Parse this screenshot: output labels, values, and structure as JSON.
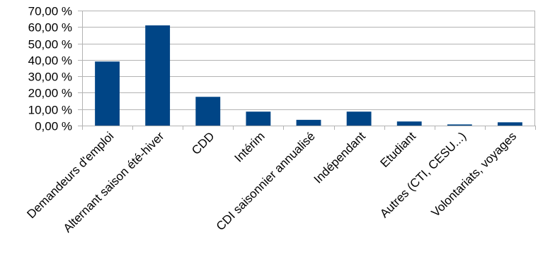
{
  "chart_data": {
    "type": "bar",
    "title": "",
    "xlabel": "",
    "ylabel": "",
    "categories": [
      "Demandeurs d'emploi",
      "Alternant saison été-hiver",
      "CDD",
      "Intérim",
      "CDI saisonnier annualisé",
      "Indépendant",
      "Etudiant",
      "Autres (CTI, CESU...)",
      "Volontariats, voyages"
    ],
    "values": [
      39.0,
      61.0,
      17.5,
      8.5,
      3.5,
      8.5,
      2.5,
      0.7,
      2.0
    ],
    "ylim": [
      0,
      70
    ],
    "yticks": [
      0,
      10,
      20,
      30,
      40,
      50,
      60,
      70
    ],
    "ytick_labels": [
      "0,00 %",
      "10,00 %",
      "20,00 %",
      "30,00 %",
      "40,00 %",
      "50,00 %",
      "60,00 %",
      "70,00 %"
    ],
    "grid": true,
    "legend": "none",
    "colors": {
      "bar": "#004586",
      "grid": "#b3b3b3",
      "axis": "#b3b3b3"
    }
  }
}
